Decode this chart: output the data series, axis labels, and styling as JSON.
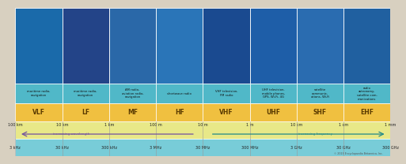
{
  "bands": [
    "VLF",
    "LF",
    "MF",
    "HF",
    "VHF",
    "UHF",
    "SHF",
    "EHF"
  ],
  "band_descriptions": [
    "maritime radio,\nnavigation",
    "maritime radio,\nnavigation",
    "AM radio,\naviation radio,\nnavigation",
    "shortwave radio",
    "VHF television,\nFM radio",
    "UHF television,\nmobile phones,\nGPS, Wi-Fi, 4G",
    "satellite\ncommunic-\nations, Wi-Fi",
    "radio\nastronomy,\nsatellite com-\nmunications"
  ],
  "wavelengths": [
    "100 km",
    "10 km",
    "1 km",
    "100 m",
    "10 m",
    "1 m",
    "10 cm",
    "1 cm",
    "1 mm"
  ],
  "frequencies": [
    "3 kHz",
    "30 kHz",
    "300 kHz",
    "3 MHz",
    "30 MHz",
    "300 MHz",
    "3 GHz",
    "30 GHz",
    "300 GHz"
  ],
  "band_color": "#F0C040",
  "wavelength_row_color": "#E8E888",
  "frequency_row_color": "#78CCD8",
  "desc_bg_color": "#50B8C8",
  "img_bg_colors": [
    "#1A6AAA",
    "#234488",
    "#2A68A8",
    "#2A75B8",
    "#1A4A90",
    "#1E5EA8",
    "#2A6CB0",
    "#2060A0"
  ],
  "copyright_text": "© 2013 Encyclopaedia Britannica, Inc.",
  "fig_bg": "#D8D0C0",
  "band_label_color": "#5A3A00",
  "wavelength_text_color": "#222222",
  "freq_text_color": "#222222",
  "arrow_wavelength_color": "#7050A0",
  "arrow_freq_color": "#208888",
  "desc_text_color": "#111111",
  "n_bands": 8
}
